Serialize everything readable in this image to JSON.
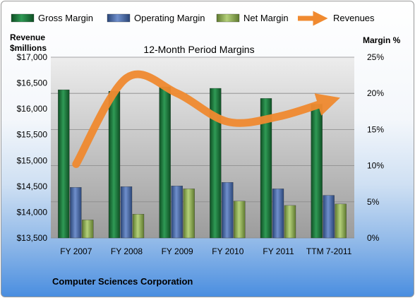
{
  "chart_data": {
    "type": "bar",
    "title": "12-Month Period Margins",
    "categories": [
      "FY 2007",
      "FY 2008",
      "FY 2009",
      "FY 2010",
      "FY 2011",
      "TTM 7-2011"
    ],
    "series": [
      {
        "name": "Gross Margin",
        "axis": "right",
        "color": "#1f7a3f",
        "values": [
          20.5,
          20.3,
          20.9,
          20.7,
          19.3,
          18.5
        ]
      },
      {
        "name": "Operating Margin",
        "axis": "right",
        "color": "#4a6db0",
        "values": [
          7.0,
          7.1,
          7.2,
          7.7,
          6.8,
          5.9
        ]
      },
      {
        "name": "Net Margin",
        "axis": "right",
        "color": "#8fb050",
        "values": [
          2.5,
          3.3,
          6.8,
          5.1,
          4.5,
          4.7
        ]
      },
      {
        "name": "Revenues",
        "axis": "left",
        "type": "line",
        "color": "#f08a30",
        "values": [
          14930,
          16600,
          16300,
          15750,
          15850,
          16150
        ]
      }
    ],
    "yaxis_left": {
      "label_line1": "Revenue",
      "label_line2": "$millions",
      "min": 13500,
      "max": 17000,
      "ticks": [
        "$13,500",
        "$14,000",
        "$14,500",
        "$15,000",
        "$15,500",
        "$16,000",
        "$16,500",
        "$17,000"
      ]
    },
    "yaxis_right": {
      "label": "Margin %",
      "min": 0,
      "max": 25,
      "ticks": [
        "0%",
        "5%",
        "10%",
        "15%",
        "20%",
        "25%"
      ]
    },
    "legend_position": "top",
    "grid": true
  },
  "footer": {
    "company": "Computer Sciences Corporation"
  }
}
